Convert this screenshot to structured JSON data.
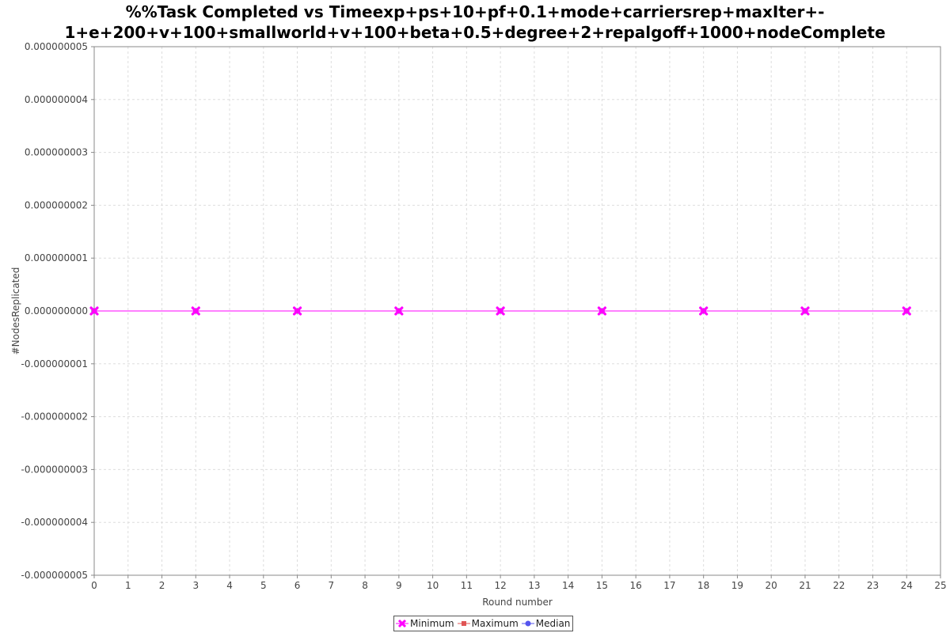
{
  "chart_data": {
    "type": "line",
    "title_lines": [
      "%%Task Completed vs Timeexp+ps+10+pf+0.1+mode+carriersrep+maxIter+-",
      "1+e+200+v+100+smallworld+v+100+beta+0.5+degree+2+repalgoff+1000+nodeComplete"
    ],
    "xlabel": "Round number",
    "ylabel": "#NodesReplicated",
    "xlim": [
      0,
      25
    ],
    "ylim": [
      -5e-09,
      5e-09
    ],
    "x_ticks": [
      "0",
      "1",
      "2",
      "3",
      "4",
      "5",
      "6",
      "7",
      "8",
      "9",
      "10",
      "11",
      "12",
      "13",
      "14",
      "15",
      "16",
      "17",
      "18",
      "19",
      "20",
      "21",
      "22",
      "23",
      "24",
      "25"
    ],
    "y_ticks": [
      {
        "value": 5e-09,
        "label": "0.000000005"
      },
      {
        "value": 4e-09,
        "label": "0.000000004"
      },
      {
        "value": 3e-09,
        "label": "0.000000003"
      },
      {
        "value": 2e-09,
        "label": "0.000000002"
      },
      {
        "value": 1e-09,
        "label": "0.000000001"
      },
      {
        "value": 0,
        "label": "0.000000000"
      },
      {
        "value": -1e-09,
        "label": "-0.000000001"
      },
      {
        "value": -2e-09,
        "label": "-0.000000002"
      },
      {
        "value": -3e-09,
        "label": "-0.000000003"
      },
      {
        "value": -4e-09,
        "label": "-0.000000004"
      },
      {
        "value": -5e-09,
        "label": "-0.000000005"
      }
    ],
    "grid": true,
    "legend_position": "bottom-center",
    "series": [
      {
        "name": "Minimum",
        "color": "#ff00ff",
        "marker": "x",
        "x": [
          0,
          3,
          6,
          9,
          12,
          15,
          18,
          21,
          24
        ],
        "y": [
          0,
          0,
          0,
          0,
          0,
          0,
          0,
          0,
          0
        ]
      },
      {
        "name": "Maximum",
        "color": "#e05555",
        "marker": "square",
        "x": [
          0,
          3,
          6,
          9,
          12,
          15,
          18,
          21,
          24
        ],
        "y": [
          0,
          0,
          0,
          0,
          0,
          0,
          0,
          0,
          0
        ]
      },
      {
        "name": "Median",
        "color": "#5555ee",
        "marker": "circle",
        "x": [
          0,
          3,
          6,
          9,
          12,
          15,
          18,
          21,
          24
        ],
        "y": [
          0,
          0,
          0,
          0,
          0,
          0,
          0,
          0,
          0
        ]
      }
    ]
  }
}
